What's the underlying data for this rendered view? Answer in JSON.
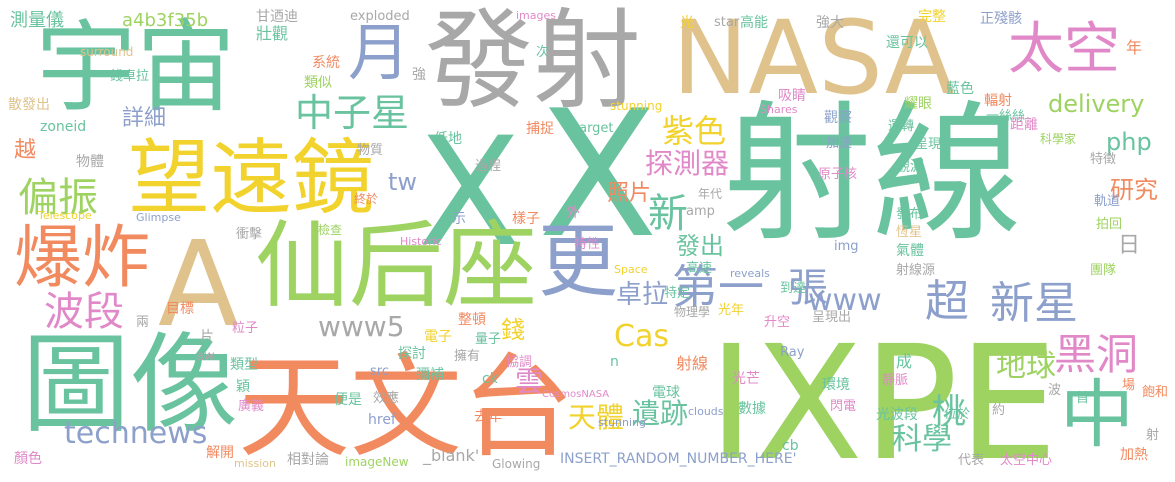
{
  "words": [
    {
      "text": "X",
      "color": "#69c39f"
    },
    {
      "text": "IXPE",
      "color": "#9ed362"
    },
    {
      "text": "射線",
      "color": "#69c39f"
    },
    {
      "text": "宇宙",
      "color": "#69c39f"
    },
    {
      "text": "NASA",
      "color": "#e0c38c"
    },
    {
      "text": "發射",
      "color": "#a8a8a8"
    },
    {
      "text": "天文台",
      "color": "#f28a60"
    },
    {
      "text": "圖像",
      "color": "#69c39f"
    },
    {
      "text": "仙后座",
      "color": "#9ed362"
    },
    {
      "text": "望遠鏡",
      "color": "#f2d22c"
    },
    {
      "text": "A",
      "color": "#e0c38c"
    },
    {
      "text": "太空",
      "color": "#e189c8"
    },
    {
      "text": "爆炸",
      "color": "#f28a60"
    },
    {
      "text": "月",
      "color": "#8da0cb"
    },
    {
      "text": "更",
      "color": "#8da0cb"
    },
    {
      "text": "中",
      "color": "#69c39f"
    },
    {
      "text": "第一",
      "color": "#8da0cb"
    },
    {
      "text": "張",
      "color": "#8da0cb"
    },
    {
      "text": "超",
      "color": "#8da0cb"
    },
    {
      "text": "新星",
      "color": "#8da0cb"
    },
    {
      "text": "黑洞",
      "color": "#e189c8"
    },
    {
      "text": "中子星",
      "color": "#69c39f"
    },
    {
      "text": "偏振",
      "color": "#9ed362"
    },
    {
      "text": "波段",
      "color": "#e189c8"
    },
    {
      "text": "technews",
      "color": "#8da0cb"
    },
    {
      "text": "www5",
      "color": "#a8a8a8"
    },
    {
      "text": "www",
      "color": "#8da0cb"
    },
    {
      "text": "探測器",
      "color": "#e189c8"
    },
    {
      "text": "紫色",
      "color": "#f2d22c"
    },
    {
      "text": "新",
      "color": "#69c39f"
    },
    {
      "text": "Cas",
      "color": "#f2d22c"
    },
    {
      "text": "天體",
      "color": "#f2d22c"
    },
    {
      "text": "遺跡",
      "color": "#69c39f"
    },
    {
      "text": "科學",
      "color": "#69c39f"
    },
    {
      "text": "地球",
      "color": "#9ed362"
    },
    {
      "text": "桃",
      "color": "#69c39f"
    },
    {
      "text": "研究",
      "color": "#f28a60"
    },
    {
      "text": "delivery",
      "color": "#9ed362"
    },
    {
      "text": "php",
      "color": "#69c39f"
    },
    {
      "text": "詳細",
      "color": "#8da0cb"
    },
    {
      "text": "卓拉",
      "color": "#8da0cb"
    },
    {
      "text": "發出",
      "color": "#69c39f"
    },
    {
      "text": "照片",
      "color": "#f28a60"
    },
    {
      "text": "tw",
      "color": "#8da0cb"
    },
    {
      "text": "雲",
      "color": "#e189c8"
    },
    {
      "text": "錢",
      "color": "#f2d22c"
    },
    {
      "text": "年",
      "color": "#f28a60"
    },
    {
      "text": "日",
      "color": "#a8a8a8"
    },
    {
      "text": "越",
      "color": "#f28a60"
    },
    {
      "text": "測量儀",
      "color": "#69c39f"
    },
    {
      "text": "a4b3f35b",
      "color": "#9ed362"
    },
    {
      "text": "甘迺迪",
      "color": "#a8a8a8"
    },
    {
      "text": "exploded",
      "color": "#a8a8a8"
    },
    {
      "text": "images",
      "color": "#e189c8"
    },
    {
      "text": "光",
      "color": "#f2d22c"
    },
    {
      "text": "star",
      "color": "#a8a8a8"
    },
    {
      "text": "高能",
      "color": "#69c39f"
    },
    {
      "text": "強大",
      "color": "#a8a8a8"
    },
    {
      "text": "完整",
      "color": "#f2d22c"
    },
    {
      "text": "正殘骸",
      "color": "#8da0cb"
    },
    {
      "text": "surround",
      "color": "#e0c38c"
    },
    {
      "text": "錢卓拉",
      "color": "#69c39f"
    },
    {
      "text": "壯觀",
      "color": "#69c39f"
    },
    {
      "text": "系統",
      "color": "#f28a60"
    },
    {
      "text": "類似",
      "color": "#9ed362"
    },
    {
      "text": "強",
      "color": "#a8a8a8"
    },
    {
      "text": "次",
      "color": "#69c39f"
    },
    {
      "text": "還可以",
      "color": "#69c39f"
    },
    {
      "text": "散發出",
      "color": "#e0c38c"
    },
    {
      "text": "zoneid",
      "color": "#69c39f"
    },
    {
      "text": "吸睛",
      "color": "#e189c8"
    },
    {
      "text": "耀眼",
      "color": "#9ed362"
    },
    {
      "text": "藍色",
      "color": "#69c39f"
    },
    {
      "text": "輻射",
      "color": "#f28a60"
    },
    {
      "text": "距離",
      "color": "#e189c8"
    },
    {
      "text": "一絲絲",
      "color": "#69c39f"
    },
    {
      "text": "Shares",
      "color": "#e189c8"
    },
    {
      "text": "觀察",
      "color": "#8da0cb"
    },
    {
      "text": "運轉",
      "color": "#69c39f"
    },
    {
      "text": "科學家",
      "color": "#9ed362"
    },
    {
      "text": "低地",
      "color": "#69c39f"
    },
    {
      "text": "捕捉",
      "color": "#f28a60"
    },
    {
      "text": "target",
      "color": "#69c39f"
    },
    {
      "text": "stunning",
      "color": "#f2d22c"
    },
    {
      "text": "加速",
      "color": "#8da0cb"
    },
    {
      "text": "呈現",
      "color": "#69c39f"
    },
    {
      "text": "物體",
      "color": "#a8a8a8"
    },
    {
      "text": "物質",
      "color": "#a8a8a8"
    },
    {
      "text": "過程",
      "color": "#a8a8a8"
    },
    {
      "text": "原子核",
      "color": "#e189c8"
    },
    {
      "text": "特徵",
      "color": "#a8a8a8"
    },
    {
      "text": "觀測",
      "color": "#69c39f"
    },
    {
      "text": "檢查",
      "color": "#9ed362"
    },
    {
      "text": "終於",
      "color": "#f28a60"
    },
    {
      "text": "年代",
      "color": "#a8a8a8"
    },
    {
      "text": "軌道",
      "color": "#8da0cb"
    },
    {
      "text": "Telescope",
      "color": "#f2d22c"
    },
    {
      "text": "Glimpse",
      "color": "#8da0cb"
    },
    {
      "text": "示",
      "color": "#8da0cb"
    },
    {
      "text": "amp",
      "color": "#a8a8a8"
    },
    {
      "text": "樣子",
      "color": "#f28a60"
    },
    {
      "text": "外",
      "color": "#e189c8"
    },
    {
      "text": "發布",
      "color": "#69c39f"
    },
    {
      "text": "恆星",
      "color": "#e0c38c"
    },
    {
      "text": "拍回",
      "color": "#9ed362"
    },
    {
      "text": "衝擊",
      "color": "#a8a8a8"
    },
    {
      "text": "Historic",
      "color": "#e189c8"
    },
    {
      "text": "特性",
      "color": "#e189c8"
    },
    {
      "text": "img",
      "color": "#8da0cb"
    },
    {
      "text": "氣體",
      "color": "#69c39f"
    },
    {
      "text": "射線源",
      "color": "#a8a8a8"
    },
    {
      "text": "Space",
      "color": "#f2d22c"
    },
    {
      "text": "高速",
      "color": "#69c39f"
    },
    {
      "text": "reveals",
      "color": "#8da0cb"
    },
    {
      "text": "到達",
      "color": "#69c39f"
    },
    {
      "text": "團隊",
      "color": "#9ed362"
    },
    {
      "text": "目標",
      "color": "#f28a60"
    },
    {
      "text": "兩",
      "color": "#a8a8a8"
    },
    {
      "text": "粒子",
      "color": "#e189c8"
    },
    {
      "text": "整頓",
      "color": "#f28a60"
    },
    {
      "text": "特定",
      "color": "#69c39f"
    },
    {
      "text": "光年",
      "color": "#f2d22c"
    },
    {
      "text": "升空",
      "color": "#e189c8"
    },
    {
      "text": "呈現出",
      "color": "#a8a8a8"
    },
    {
      "text": "片",
      "color": "#a8a8a8"
    },
    {
      "text": "aw",
      "color": "#a8a8a8"
    },
    {
      "text": "類型",
      "color": "#69c39f"
    },
    {
      "text": "電子",
      "color": "#f2d22c"
    },
    {
      "text": "物理學",
      "color": "#a8a8a8"
    },
    {
      "text": "量子",
      "color": "#69c39f"
    },
    {
      "text": "探討",
      "color": "#69c39f"
    },
    {
      "text": "擁有",
      "color": "#a8a8a8"
    },
    {
      "text": "協調",
      "color": "#e189c8"
    },
    {
      "text": "n",
      "color": "#69c39f"
    },
    {
      "text": "射線",
      "color": "#f28a60"
    },
    {
      "text": "Ray",
      "color": "#8da0cb"
    },
    {
      "text": "成",
      "color": "#69c39f"
    },
    {
      "text": "靜脈",
      "color": "#e189c8"
    },
    {
      "text": "環境",
      "color": "#69c39f"
    },
    {
      "text": "波",
      "color": "#a8a8a8"
    },
    {
      "text": "場",
      "color": "#f28a60"
    },
    {
      "text": "飽和",
      "color": "#f28a60"
    },
    {
      "text": "首",
      "color": "#69c39f"
    },
    {
      "text": "穎",
      "color": "#69c39f"
    },
    {
      "text": "src",
      "color": "#8da0cb"
    },
    {
      "text": "彌補",
      "color": "#69c39f"
    },
    {
      "text": "ck",
      "color": "#69c39f"
    },
    {
      "text": "CosmosNASA",
      "color": "#e189c8"
    },
    {
      "text": "電球",
      "color": "#69c39f"
    },
    {
      "text": "光芒",
      "color": "#e189c8"
    },
    {
      "text": "數據",
      "color": "#69c39f"
    },
    {
      "text": "閃電",
      "color": "#e189c8"
    },
    {
      "text": "光波段",
      "color": "#69c39f"
    },
    {
      "text": "位於",
      "color": "#69c39f"
    },
    {
      "text": "約",
      "color": "#a8a8a8"
    },
    {
      "text": "廣義",
      "color": "#e189c8"
    },
    {
      "text": "便是",
      "color": "#69c39f"
    },
    {
      "text": "效應",
      "color": "#a8a8a8"
    },
    {
      "text": "href",
      "color": "#8da0cb"
    },
    {
      "text": "去年",
      "color": "#f28a60"
    },
    {
      "text": "stunning",
      "color": "#8da0cb"
    },
    {
      "text": "clouds",
      "color": "#8da0cb"
    },
    {
      "text": "cb",
      "color": "#69c39f"
    },
    {
      "text": "射",
      "color": "#a8a8a8"
    },
    {
      "text": "顏色",
      "color": "#e189c8"
    },
    {
      "text": "解開",
      "color": "#f28a60"
    },
    {
      "text": "mission",
      "color": "#e0c38c"
    },
    {
      "text": "相對論",
      "color": "#a8a8a8"
    },
    {
      "text": "imageNew",
      "color": "#9ed362"
    },
    {
      "text": "_blank'",
      "color": "#a8a8a8"
    },
    {
      "text": "Glowing",
      "color": "#a8a8a8"
    },
    {
      "text": "INSERT_RANDOM_NUMBER_HERE'",
      "color": "#8da0cb"
    },
    {
      "text": "代表",
      "color": "#a8a8a8"
    },
    {
      "text": "太空中心",
      "color": "#e189c8"
    },
    {
      "text": "加熱",
      "color": "#f28a60"
    }
  ]
}
